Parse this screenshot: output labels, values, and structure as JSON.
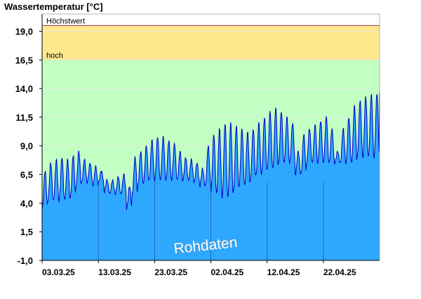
{
  "chart_data": {
    "type": "area",
    "title": "Wassertemperatur [°C]",
    "ylim": [
      -1.0,
      20.5
    ],
    "yticks": [
      "-1,0",
      "1,5",
      "4,0",
      "6,5",
      "9,0",
      "11,5",
      "14,0",
      "16,5",
      "19,0"
    ],
    "ytick_values": [
      -1.0,
      1.5,
      4.0,
      6.5,
      9.0,
      11.5,
      14.0,
      16.5,
      19.0
    ],
    "xticks": [
      "03.03.25",
      "13.03.25",
      "23.03.25",
      "02.04.25",
      "12.04.25",
      "22.04.25"
    ],
    "xtick_days": [
      0,
      10,
      20,
      30,
      40,
      50
    ],
    "xlim_days": [
      0,
      60
    ],
    "bands": [
      {
        "label": "Höchstwert",
        "from": 16.5,
        "to": 19.5,
        "color": "#ffe88e",
        "line_color": "#a0304a"
      },
      {
        "label": "hoch",
        "from": -1.0,
        "to": 16.5,
        "color": "#c2ffc2"
      }
    ],
    "watermark": "Rohdaten",
    "colors": {
      "area_fill": "#2ea8ff",
      "line": "#0000cc",
      "grid": "#e0e0e0"
    },
    "series": [
      {
        "x_days": [
          0.0,
          1.0,
          2.0,
          3.0,
          4.0,
          5.0,
          6.0,
          7.0,
          8.0,
          9.0,
          10.0,
          11.0,
          12.0,
          13.0,
          14.0,
          15.0,
          16.0,
          17.0,
          18.0,
          19.0,
          20.0,
          21.0,
          22.0,
          23.0,
          24.0,
          25.0,
          26.0,
          27.0,
          28.0,
          29.0,
          30.0,
          31.0,
          32.0,
          33.0,
          34.0,
          35.0,
          36.0,
          37.0,
          38.0,
          39.0,
          40.0,
          41.0,
          42.0,
          43.0,
          44.0,
          45.0,
          46.0,
          47.0,
          48.0,
          49.0,
          50.0,
          51.0,
          52.0,
          53.0,
          54.0,
          55.0,
          56.0,
          57.0,
          58.0,
          59.0
        ],
        "daily_min": [
          3.5,
          4.2,
          4.2,
          4.2,
          4.3,
          4.5,
          5.5,
          5.8,
          5.8,
          5.5,
          5.8,
          5.0,
          4.8,
          4.8,
          4.8,
          3.5,
          4.8,
          5.5,
          5.8,
          6.0,
          6.0,
          6.0,
          6.0,
          6.0,
          6.0,
          6.0,
          6.0,
          5.8,
          5.5,
          5.5,
          5.0,
          4.8,
          4.5,
          4.5,
          5.0,
          5.5,
          5.5,
          6.0,
          6.5,
          6.5,
          7.0,
          7.0,
          7.5,
          7.5,
          7.5,
          6.5,
          6.5,
          7.5,
          7.5,
          7.5,
          7.5,
          7.5,
          7.5,
          7.5,
          7.5,
          7.5,
          8.0,
          8.0,
          8.0,
          8.0
        ],
        "daily_max": [
          6.8,
          7.5,
          7.8,
          8.0,
          7.8,
          8.2,
          8.5,
          7.8,
          7.5,
          7.2,
          6.8,
          6.0,
          6.0,
          6.3,
          6.5,
          5.5,
          8.0,
          8.5,
          9.0,
          9.5,
          9.8,
          9.8,
          9.5,
          9.2,
          8.5,
          8.0,
          7.8,
          7.5,
          7.0,
          9.0,
          10.0,
          10.5,
          11.0,
          11.0,
          10.8,
          10.5,
          10.2,
          10.5,
          11.0,
          11.5,
          12.0,
          12.3,
          12.0,
          11.5,
          11.0,
          8.5,
          10.0,
          10.5,
          10.8,
          11.2,
          11.5,
          10.5,
          8.5,
          10.5,
          11.5,
          12.5,
          13.0,
          13.3,
          13.5,
          13.6
        ]
      }
    ]
  }
}
